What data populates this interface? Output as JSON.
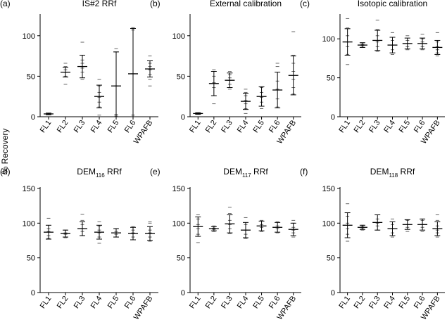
{
  "ylabel": "% Recovery",
  "chart_data": [
    {
      "type": "scatter",
      "panel": "(a)",
      "title": "IS#2 RRf",
      "title_sub": "",
      "title_suffix": "",
      "ylim": [
        0,
        125
      ],
      "yticks": [
        0,
        50,
        100
      ],
      "categories": [
        "FL1",
        "FL2",
        "FL3",
        "FL4",
        "FL5",
        "FL6",
        "WPAFB"
      ],
      "series": [
        {
          "name": "FL1",
          "mean": 3.5,
          "sd": 1,
          "points": [
            3,
            4,
            3.5,
            4
          ]
        },
        {
          "name": "FL2",
          "mean": 55,
          "sd": 6,
          "points": [
            40,
            50,
            55,
            58,
            62,
            66
          ]
        },
        {
          "name": "FL3",
          "mean": 62,
          "sd": 14,
          "points": [
            46,
            55,
            60,
            62,
            66,
            70,
            92
          ]
        },
        {
          "name": "FL4",
          "mean": 25,
          "sd": 14,
          "points": [
            2,
            12,
            18,
            24,
            30,
            38,
            46
          ]
        },
        {
          "name": "FL5",
          "mean": 38,
          "sd": 42,
          "points": [
            1,
            3,
            38,
            80,
            84
          ]
        },
        {
          "name": "FL6",
          "mean": 53,
          "sd": 56,
          "points": [
            0,
            2,
            53,
            107,
            110
          ]
        },
        {
          "name": "WPAFB",
          "mean": 59,
          "sd": 10,
          "points": [
            38,
            46,
            52,
            58,
            62,
            66,
            75
          ]
        }
      ]
    },
    {
      "type": "scatter",
      "panel": "(b)",
      "title": "External calibration",
      "title_sub": "",
      "title_suffix": "",
      "ylim": [
        0,
        125
      ],
      "yticks": [
        0,
        50,
        100
      ],
      "categories": [
        "FL1",
        "FL2",
        "FL3",
        "FL4",
        "FL5",
        "FL6",
        "WPAFB"
      ],
      "series": [
        {
          "name": "FL1",
          "mean": 4,
          "sd": 1,
          "points": [
            3,
            4,
            4.5,
            4
          ]
        },
        {
          "name": "FL2",
          "mean": 41,
          "sd": 15,
          "points": [
            16,
            26,
            36,
            42,
            50,
            56,
            58
          ]
        },
        {
          "name": "FL3",
          "mean": 45,
          "sd": 9,
          "points": [
            34,
            40,
            45,
            48,
            52,
            56
          ]
        },
        {
          "name": "FL4",
          "mean": 19,
          "sd": 10,
          "points": [
            4,
            10,
            16,
            20,
            26,
            30,
            34
          ]
        },
        {
          "name": "FL5",
          "mean": 25,
          "sd": 12,
          "points": [
            10,
            18,
            24,
            30,
            36
          ]
        },
        {
          "name": "FL6",
          "mean": 33,
          "sd": 22,
          "points": [
            12,
            22,
            34,
            44,
            62,
            66
          ]
        },
        {
          "name": "WPAFB",
          "mean": 51,
          "sd": 24,
          "points": [
            28,
            36,
            46,
            56,
            66,
            76,
            105
          ]
        }
      ]
    },
    {
      "type": "scatter",
      "panel": "(c)",
      "title": "Isotopic calibration",
      "title_sub": "",
      "title_suffix": "",
      "ylim": [
        0,
        130
      ],
      "yticks": [
        0,
        50,
        100
      ],
      "categories": [
        "FL1",
        "FL2",
        "FL3",
        "FL4",
        "FL5",
        "FL6",
        "WPAFB"
      ],
      "series": [
        {
          "name": "FL1",
          "mean": 96,
          "sd": 17,
          "points": [
            67,
            80,
            90,
            96,
            104,
            114,
            126
          ]
        },
        {
          "name": "FL2",
          "mean": 92,
          "sd": 3,
          "points": [
            89,
            91,
            93,
            95
          ]
        },
        {
          "name": "FL3",
          "mean": 98,
          "sd": 13,
          "points": [
            84,
            90,
            96,
            104,
            112,
            124
          ]
        },
        {
          "name": "FL4",
          "mean": 92,
          "sd": 10,
          "points": [
            80,
            86,
            92,
            98,
            108
          ]
        },
        {
          "name": "FL5",
          "mean": 94,
          "sd": 7,
          "points": [
            86,
            90,
            94,
            98,
            104
          ]
        },
        {
          "name": "FL6",
          "mean": 94,
          "sd": 7,
          "points": [
            86,
            90,
            96,
            100,
            106
          ]
        },
        {
          "name": "WPAFB",
          "mean": 89,
          "sd": 9,
          "points": [
            78,
            82,
            86,
            90,
            96,
            108
          ]
        }
      ]
    },
    {
      "type": "scatter",
      "panel": "(d)",
      "title": "DEM",
      "title_sub": "116",
      "title_suffix": " RRf",
      "ylim": [
        0,
        150
      ],
      "yticks": [
        0,
        50,
        100,
        150
      ],
      "categories": [
        "FL1",
        "FL2",
        "FL3",
        "FL4",
        "FL5",
        "FL6",
        "WPAFB"
      ],
      "series": [
        {
          "name": "FL1",
          "mean": 87,
          "sd": 10,
          "points": [
            78,
            82,
            88,
            92,
            107
          ]
        },
        {
          "name": "FL2",
          "mean": 85,
          "sd": 5,
          "points": [
            79,
            84,
            86,
            90
          ]
        },
        {
          "name": "FL3",
          "mean": 92,
          "sd": 10,
          "points": [
            82,
            88,
            92,
            98,
            104,
            113
          ]
        },
        {
          "name": "FL4",
          "mean": 87,
          "sd": 10,
          "points": [
            71,
            80,
            86,
            90,
            96,
            102
          ]
        },
        {
          "name": "FL5",
          "mean": 86,
          "sd": 6,
          "points": [
            80,
            84,
            88,
            92
          ]
        },
        {
          "name": "FL6",
          "mean": 85,
          "sd": 9,
          "points": [
            76,
            80,
            86,
            90,
            95
          ]
        },
        {
          "name": "WPAFB",
          "mean": 85,
          "sd": 10,
          "points": [
            74,
            80,
            86,
            90,
            100,
            102
          ]
        }
      ]
    },
    {
      "type": "scatter",
      "panel": "(e)",
      "title": "DEM",
      "title_sub": "117",
      "title_suffix": " RRf",
      "ylim": [
        0,
        150
      ],
      "yticks": [
        0,
        50,
        100,
        150
      ],
      "categories": [
        "FL1",
        "FL2",
        "FL3",
        "FL4",
        "FL5",
        "FL6",
        "WPAFB"
      ],
      "series": [
        {
          "name": "FL1",
          "mean": 95,
          "sd": 14,
          "points": [
            72,
            84,
            92,
            98,
            106,
            112
          ]
        },
        {
          "name": "FL2",
          "mean": 92,
          "sd": 3,
          "points": [
            88,
            91,
            93,
            96
          ]
        },
        {
          "name": "FL3",
          "mean": 99,
          "sd": 13,
          "points": [
            85,
            92,
            98,
            104,
            114,
            123
          ]
        },
        {
          "name": "FL4",
          "mean": 90,
          "sd": 11,
          "points": [
            78,
            84,
            90,
            98,
            108
          ]
        },
        {
          "name": "FL5",
          "mean": 96,
          "sd": 7,
          "points": [
            88,
            94,
            98,
            104
          ]
        },
        {
          "name": "FL6",
          "mean": 94,
          "sd": 7,
          "points": [
            86,
            92,
            96,
            102
          ]
        },
        {
          "name": "WPAFB",
          "mean": 91,
          "sd": 9,
          "points": [
            80,
            86,
            90,
            94,
            100,
            104
          ]
        }
      ]
    },
    {
      "type": "scatter",
      "panel": "(f)",
      "title": "DEM",
      "title_sub": "118",
      "title_suffix": " RRf",
      "ylim": [
        0,
        150
      ],
      "yticks": [
        0,
        50,
        100,
        150
      ],
      "categories": [
        "FL1",
        "FL2",
        "FL3",
        "FL4",
        "FL5",
        "FL6",
        "WPAFB"
      ],
      "series": [
        {
          "name": "FL1",
          "mean": 97,
          "sd": 18,
          "points": [
            74,
            84,
            92,
            100,
            110,
            128
          ]
        },
        {
          "name": "FL2",
          "mean": 94,
          "sd": 3,
          "points": [
            90,
            93,
            95,
            97
          ]
        },
        {
          "name": "FL3",
          "mean": 101,
          "sd": 11,
          "points": [
            90,
            96,
            100,
            106,
            112
          ]
        },
        {
          "name": "FL4",
          "mean": 92,
          "sd": 10,
          "points": [
            80,
            86,
            92,
            98,
            106
          ]
        },
        {
          "name": "FL5",
          "mean": 98,
          "sd": 7,
          "points": [
            88,
            94,
            98,
            104
          ]
        },
        {
          "name": "FL6",
          "mean": 98,
          "sd": 8,
          "points": [
            88,
            94,
            98,
            104,
            106
          ]
        },
        {
          "name": "WPAFB",
          "mean": 92,
          "sd": 10,
          "points": [
            80,
            86,
            90,
            96,
            104,
            112
          ]
        }
      ]
    }
  ]
}
